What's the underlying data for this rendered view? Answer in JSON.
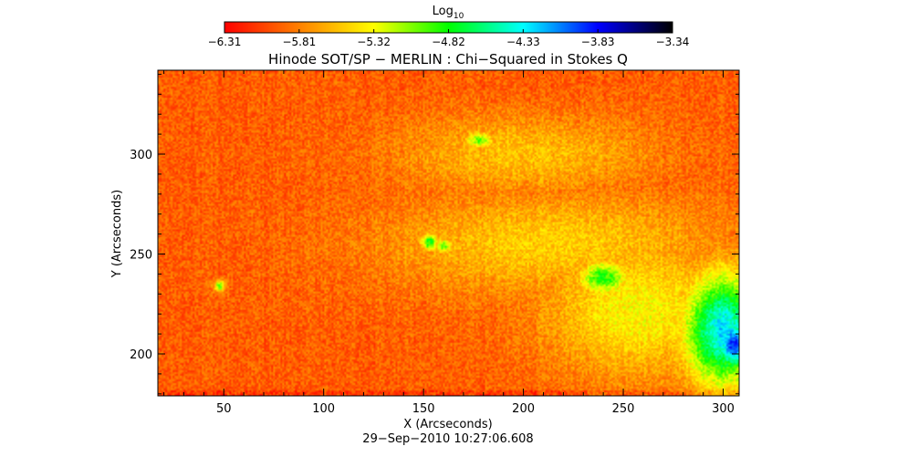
{
  "chart_data": {
    "type": "heatmap",
    "title": "Hinode SOT/SP − MERLIN : Chi−Squared in Stokes Q",
    "xlabel": "X (Arcseconds)",
    "ylabel": "Y (Arcseconds)",
    "timestamp": "29−Sep−2010 10:27:06.608",
    "xlim": [
      17,
      308
    ],
    "ylim": [
      179,
      342
    ],
    "x_ticks": [
      50,
      100,
      150,
      200,
      250,
      300
    ],
    "y_ticks": [
      200,
      250,
      300
    ],
    "x_tick_labels": [
      "50",
      "100",
      "150",
      "200",
      "250",
      "300"
    ],
    "y_tick_labels": [
      "200",
      "250",
      "300"
    ],
    "colorbar": {
      "label_main": "Log",
      "label_sub": "10",
      "min": -6.31,
      "max": -3.34,
      "tick_labels": [
        "−6.31",
        "−5.81",
        "−5.32",
        "−4.82",
        "−4.33",
        "−3.83",
        "−3.34"
      ],
      "colormap": [
        "#ff0000",
        "#ff8000",
        "#ffff00",
        "#00ff00",
        "#00ffff",
        "#0000ff",
        "#000000"
      ]
    },
    "background_level": -5.95,
    "features": [
      {
        "name": "enhanced-band-upper",
        "x": 200,
        "y": 300,
        "sx": 45,
        "sy": 14,
        "level": -5.55
      },
      {
        "name": "enhanced-band-mid",
        "x": 215,
        "y": 255,
        "sx": 60,
        "sy": 18,
        "level": -5.5
      },
      {
        "name": "green-patch-1",
        "x": 153,
        "y": 256,
        "sx": 3,
        "sy": 3,
        "level": -4.8
      },
      {
        "name": "green-patch-2",
        "x": 160,
        "y": 254,
        "sx": 3,
        "sy": 2.5,
        "level": -5.0
      },
      {
        "name": "green-patch-3",
        "x": 178,
        "y": 307,
        "sx": 5,
        "sy": 3,
        "level": -5.0
      },
      {
        "name": "green-patch-4",
        "x": 48,
        "y": 234,
        "sx": 2,
        "sy": 2,
        "level": -5.0
      },
      {
        "name": "active-region-halo",
        "x": 258,
        "y": 222,
        "sx": 34,
        "sy": 24,
        "level": -5.35
      },
      {
        "name": "active-region-green",
        "x": 240,
        "y": 238,
        "sx": 9,
        "sy": 6,
        "level": -4.85
      },
      {
        "name": "active-region-core",
        "x": 300,
        "y": 212,
        "sx": 14,
        "sy": 20,
        "level": -4.3
      },
      {
        "name": "active-region-blue",
        "x": 305,
        "y": 205,
        "sx": 6,
        "sy": 10,
        "level": -3.9
      }
    ]
  }
}
